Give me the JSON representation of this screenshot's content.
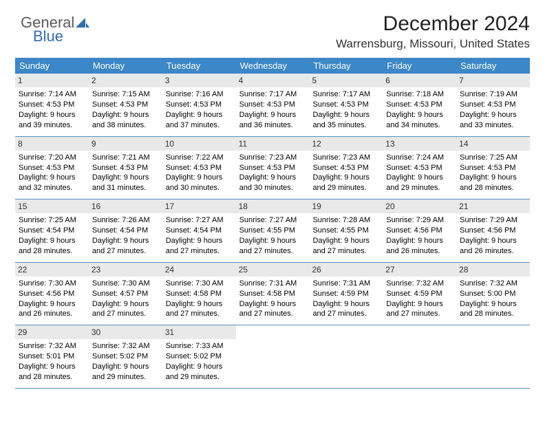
{
  "logo": {
    "text1": "General",
    "text2": "Blue",
    "icon_color": "#2f6fab"
  },
  "title": "December 2024",
  "location": "Warrensburg, Missouri, United States",
  "colors": {
    "header_bg": "#3b87c8",
    "header_text": "#ffffff",
    "daynum_bg": "#e9e9e9",
    "week_border": "#5a8fb5"
  },
  "day_headers": [
    "Sunday",
    "Monday",
    "Tuesday",
    "Wednesday",
    "Thursday",
    "Friday",
    "Saturday"
  ],
  "weeks": [
    [
      {
        "n": "1",
        "sunrise": "Sunrise: 7:14 AM",
        "sunset": "Sunset: 4:53 PM",
        "daylight": "Daylight: 9 hours and 39 minutes."
      },
      {
        "n": "2",
        "sunrise": "Sunrise: 7:15 AM",
        "sunset": "Sunset: 4:53 PM",
        "daylight": "Daylight: 9 hours and 38 minutes."
      },
      {
        "n": "3",
        "sunrise": "Sunrise: 7:16 AM",
        "sunset": "Sunset: 4:53 PM",
        "daylight": "Daylight: 9 hours and 37 minutes."
      },
      {
        "n": "4",
        "sunrise": "Sunrise: 7:17 AM",
        "sunset": "Sunset: 4:53 PM",
        "daylight": "Daylight: 9 hours and 36 minutes."
      },
      {
        "n": "5",
        "sunrise": "Sunrise: 7:17 AM",
        "sunset": "Sunset: 4:53 PM",
        "daylight": "Daylight: 9 hours and 35 minutes."
      },
      {
        "n": "6",
        "sunrise": "Sunrise: 7:18 AM",
        "sunset": "Sunset: 4:53 PM",
        "daylight": "Daylight: 9 hours and 34 minutes."
      },
      {
        "n": "7",
        "sunrise": "Sunrise: 7:19 AM",
        "sunset": "Sunset: 4:53 PM",
        "daylight": "Daylight: 9 hours and 33 minutes."
      }
    ],
    [
      {
        "n": "8",
        "sunrise": "Sunrise: 7:20 AM",
        "sunset": "Sunset: 4:53 PM",
        "daylight": "Daylight: 9 hours and 32 minutes."
      },
      {
        "n": "9",
        "sunrise": "Sunrise: 7:21 AM",
        "sunset": "Sunset: 4:53 PM",
        "daylight": "Daylight: 9 hours and 31 minutes."
      },
      {
        "n": "10",
        "sunrise": "Sunrise: 7:22 AM",
        "sunset": "Sunset: 4:53 PM",
        "daylight": "Daylight: 9 hours and 30 minutes."
      },
      {
        "n": "11",
        "sunrise": "Sunrise: 7:23 AM",
        "sunset": "Sunset: 4:53 PM",
        "daylight": "Daylight: 9 hours and 30 minutes."
      },
      {
        "n": "12",
        "sunrise": "Sunrise: 7:23 AM",
        "sunset": "Sunset: 4:53 PM",
        "daylight": "Daylight: 9 hours and 29 minutes."
      },
      {
        "n": "13",
        "sunrise": "Sunrise: 7:24 AM",
        "sunset": "Sunset: 4:53 PM",
        "daylight": "Daylight: 9 hours and 29 minutes."
      },
      {
        "n": "14",
        "sunrise": "Sunrise: 7:25 AM",
        "sunset": "Sunset: 4:53 PM",
        "daylight": "Daylight: 9 hours and 28 minutes."
      }
    ],
    [
      {
        "n": "15",
        "sunrise": "Sunrise: 7:25 AM",
        "sunset": "Sunset: 4:54 PM",
        "daylight": "Daylight: 9 hours and 28 minutes."
      },
      {
        "n": "16",
        "sunrise": "Sunrise: 7:26 AM",
        "sunset": "Sunset: 4:54 PM",
        "daylight": "Daylight: 9 hours and 27 minutes."
      },
      {
        "n": "17",
        "sunrise": "Sunrise: 7:27 AM",
        "sunset": "Sunset: 4:54 PM",
        "daylight": "Daylight: 9 hours and 27 minutes."
      },
      {
        "n": "18",
        "sunrise": "Sunrise: 7:27 AM",
        "sunset": "Sunset: 4:55 PM",
        "daylight": "Daylight: 9 hours and 27 minutes."
      },
      {
        "n": "19",
        "sunrise": "Sunrise: 7:28 AM",
        "sunset": "Sunset: 4:55 PM",
        "daylight": "Daylight: 9 hours and 27 minutes."
      },
      {
        "n": "20",
        "sunrise": "Sunrise: 7:29 AM",
        "sunset": "Sunset: 4:56 PM",
        "daylight": "Daylight: 9 hours and 26 minutes."
      },
      {
        "n": "21",
        "sunrise": "Sunrise: 7:29 AM",
        "sunset": "Sunset: 4:56 PM",
        "daylight": "Daylight: 9 hours and 26 minutes."
      }
    ],
    [
      {
        "n": "22",
        "sunrise": "Sunrise: 7:30 AM",
        "sunset": "Sunset: 4:56 PM",
        "daylight": "Daylight: 9 hours and 26 minutes."
      },
      {
        "n": "23",
        "sunrise": "Sunrise: 7:30 AM",
        "sunset": "Sunset: 4:57 PM",
        "daylight": "Daylight: 9 hours and 27 minutes."
      },
      {
        "n": "24",
        "sunrise": "Sunrise: 7:30 AM",
        "sunset": "Sunset: 4:58 PM",
        "daylight": "Daylight: 9 hours and 27 minutes."
      },
      {
        "n": "25",
        "sunrise": "Sunrise: 7:31 AM",
        "sunset": "Sunset: 4:58 PM",
        "daylight": "Daylight: 9 hours and 27 minutes."
      },
      {
        "n": "26",
        "sunrise": "Sunrise: 7:31 AM",
        "sunset": "Sunset: 4:59 PM",
        "daylight": "Daylight: 9 hours and 27 minutes."
      },
      {
        "n": "27",
        "sunrise": "Sunrise: 7:32 AM",
        "sunset": "Sunset: 4:59 PM",
        "daylight": "Daylight: 9 hours and 27 minutes."
      },
      {
        "n": "28",
        "sunrise": "Sunrise: 7:32 AM",
        "sunset": "Sunset: 5:00 PM",
        "daylight": "Daylight: 9 hours and 28 minutes."
      }
    ],
    [
      {
        "n": "29",
        "sunrise": "Sunrise: 7:32 AM",
        "sunset": "Sunset: 5:01 PM",
        "daylight": "Daylight: 9 hours and 28 minutes."
      },
      {
        "n": "30",
        "sunrise": "Sunrise: 7:32 AM",
        "sunset": "Sunset: 5:02 PM",
        "daylight": "Daylight: 9 hours and 29 minutes."
      },
      {
        "n": "31",
        "sunrise": "Sunrise: 7:33 AM",
        "sunset": "Sunset: 5:02 PM",
        "daylight": "Daylight: 9 hours and 29 minutes."
      },
      {
        "empty": true
      },
      {
        "empty": true
      },
      {
        "empty": true
      },
      {
        "empty": true
      }
    ]
  ]
}
